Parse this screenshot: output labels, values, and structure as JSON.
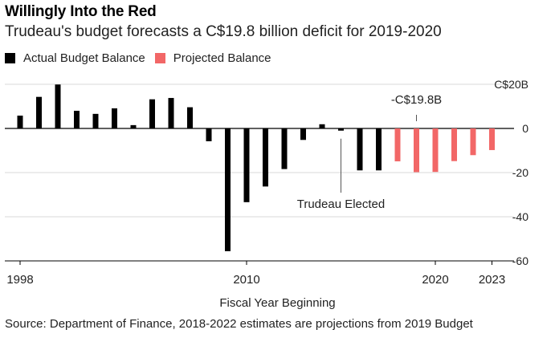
{
  "chart_data": {
    "type": "bar",
    "title": "Willingly Into the Red",
    "subtitle": "Trudeau's budget forecasts a C$19.8 billion deficit for 2019-2020",
    "xlabel": "Fiscal Year Beginning",
    "ylabel": "",
    "source": "Source: Department of Finance, 2018-2022 estimates are projections from 2019 Budget",
    "ylim": [
      -60,
      20
    ],
    "yticks": [
      {
        "value": 20,
        "label": "C$20B"
      },
      {
        "value": 0,
        "label": "0"
      },
      {
        "value": -20,
        "label": "-20"
      },
      {
        "value": -40,
        "label": "-40"
      },
      {
        "value": -60,
        "label": "-60"
      }
    ],
    "xticks": [
      {
        "year": 1998,
        "label": "1998"
      },
      {
        "year": 2010,
        "label": "2010"
      },
      {
        "year": 2020,
        "label": "2020"
      },
      {
        "year": 2023,
        "label": "2023"
      }
    ],
    "legend_position": "top-left",
    "series": [
      {
        "name": "Actual Budget Balance",
        "color": "#000000",
        "points": [
          {
            "year": 1998,
            "value": 5.8
          },
          {
            "year": 1999,
            "value": 14.3
          },
          {
            "year": 2000,
            "value": 19.9
          },
          {
            "year": 2001,
            "value": 8.0
          },
          {
            "year": 2002,
            "value": 6.6
          },
          {
            "year": 2003,
            "value": 9.1
          },
          {
            "year": 2004,
            "value": 1.5
          },
          {
            "year": 2005,
            "value": 13.2
          },
          {
            "year": 2006,
            "value": 13.8
          },
          {
            "year": 2007,
            "value": 9.6
          },
          {
            "year": 2008,
            "value": -5.8
          },
          {
            "year": 2009,
            "value": -55.6
          },
          {
            "year": 2010,
            "value": -33.4
          },
          {
            "year": 2011,
            "value": -26.3
          },
          {
            "year": 2012,
            "value": -18.4
          },
          {
            "year": 2013,
            "value": -5.2
          },
          {
            "year": 2014,
            "value": 1.9
          },
          {
            "year": 2015,
            "value": -1.0
          },
          {
            "year": 2016,
            "value": -19.0
          },
          {
            "year": 2017,
            "value": -19.0
          }
        ]
      },
      {
        "name": "Projected Balance",
        "color": "#f26767",
        "points": [
          {
            "year": 2018,
            "value": -14.9
          },
          {
            "year": 2019,
            "value": -19.8
          },
          {
            "year": 2020,
            "value": -19.7
          },
          {
            "year": 2021,
            "value": -14.8
          },
          {
            "year": 2022,
            "value": -12.1
          },
          {
            "year": 2023,
            "value": -9.8
          }
        ]
      }
    ],
    "annotations": [
      {
        "text": "-C$19.8B",
        "year": 2019,
        "value": -19.8,
        "kind": "top"
      },
      {
        "text": "Trudeau Elected",
        "year": 2015,
        "value": -1.0,
        "kind": "below"
      }
    ]
  }
}
